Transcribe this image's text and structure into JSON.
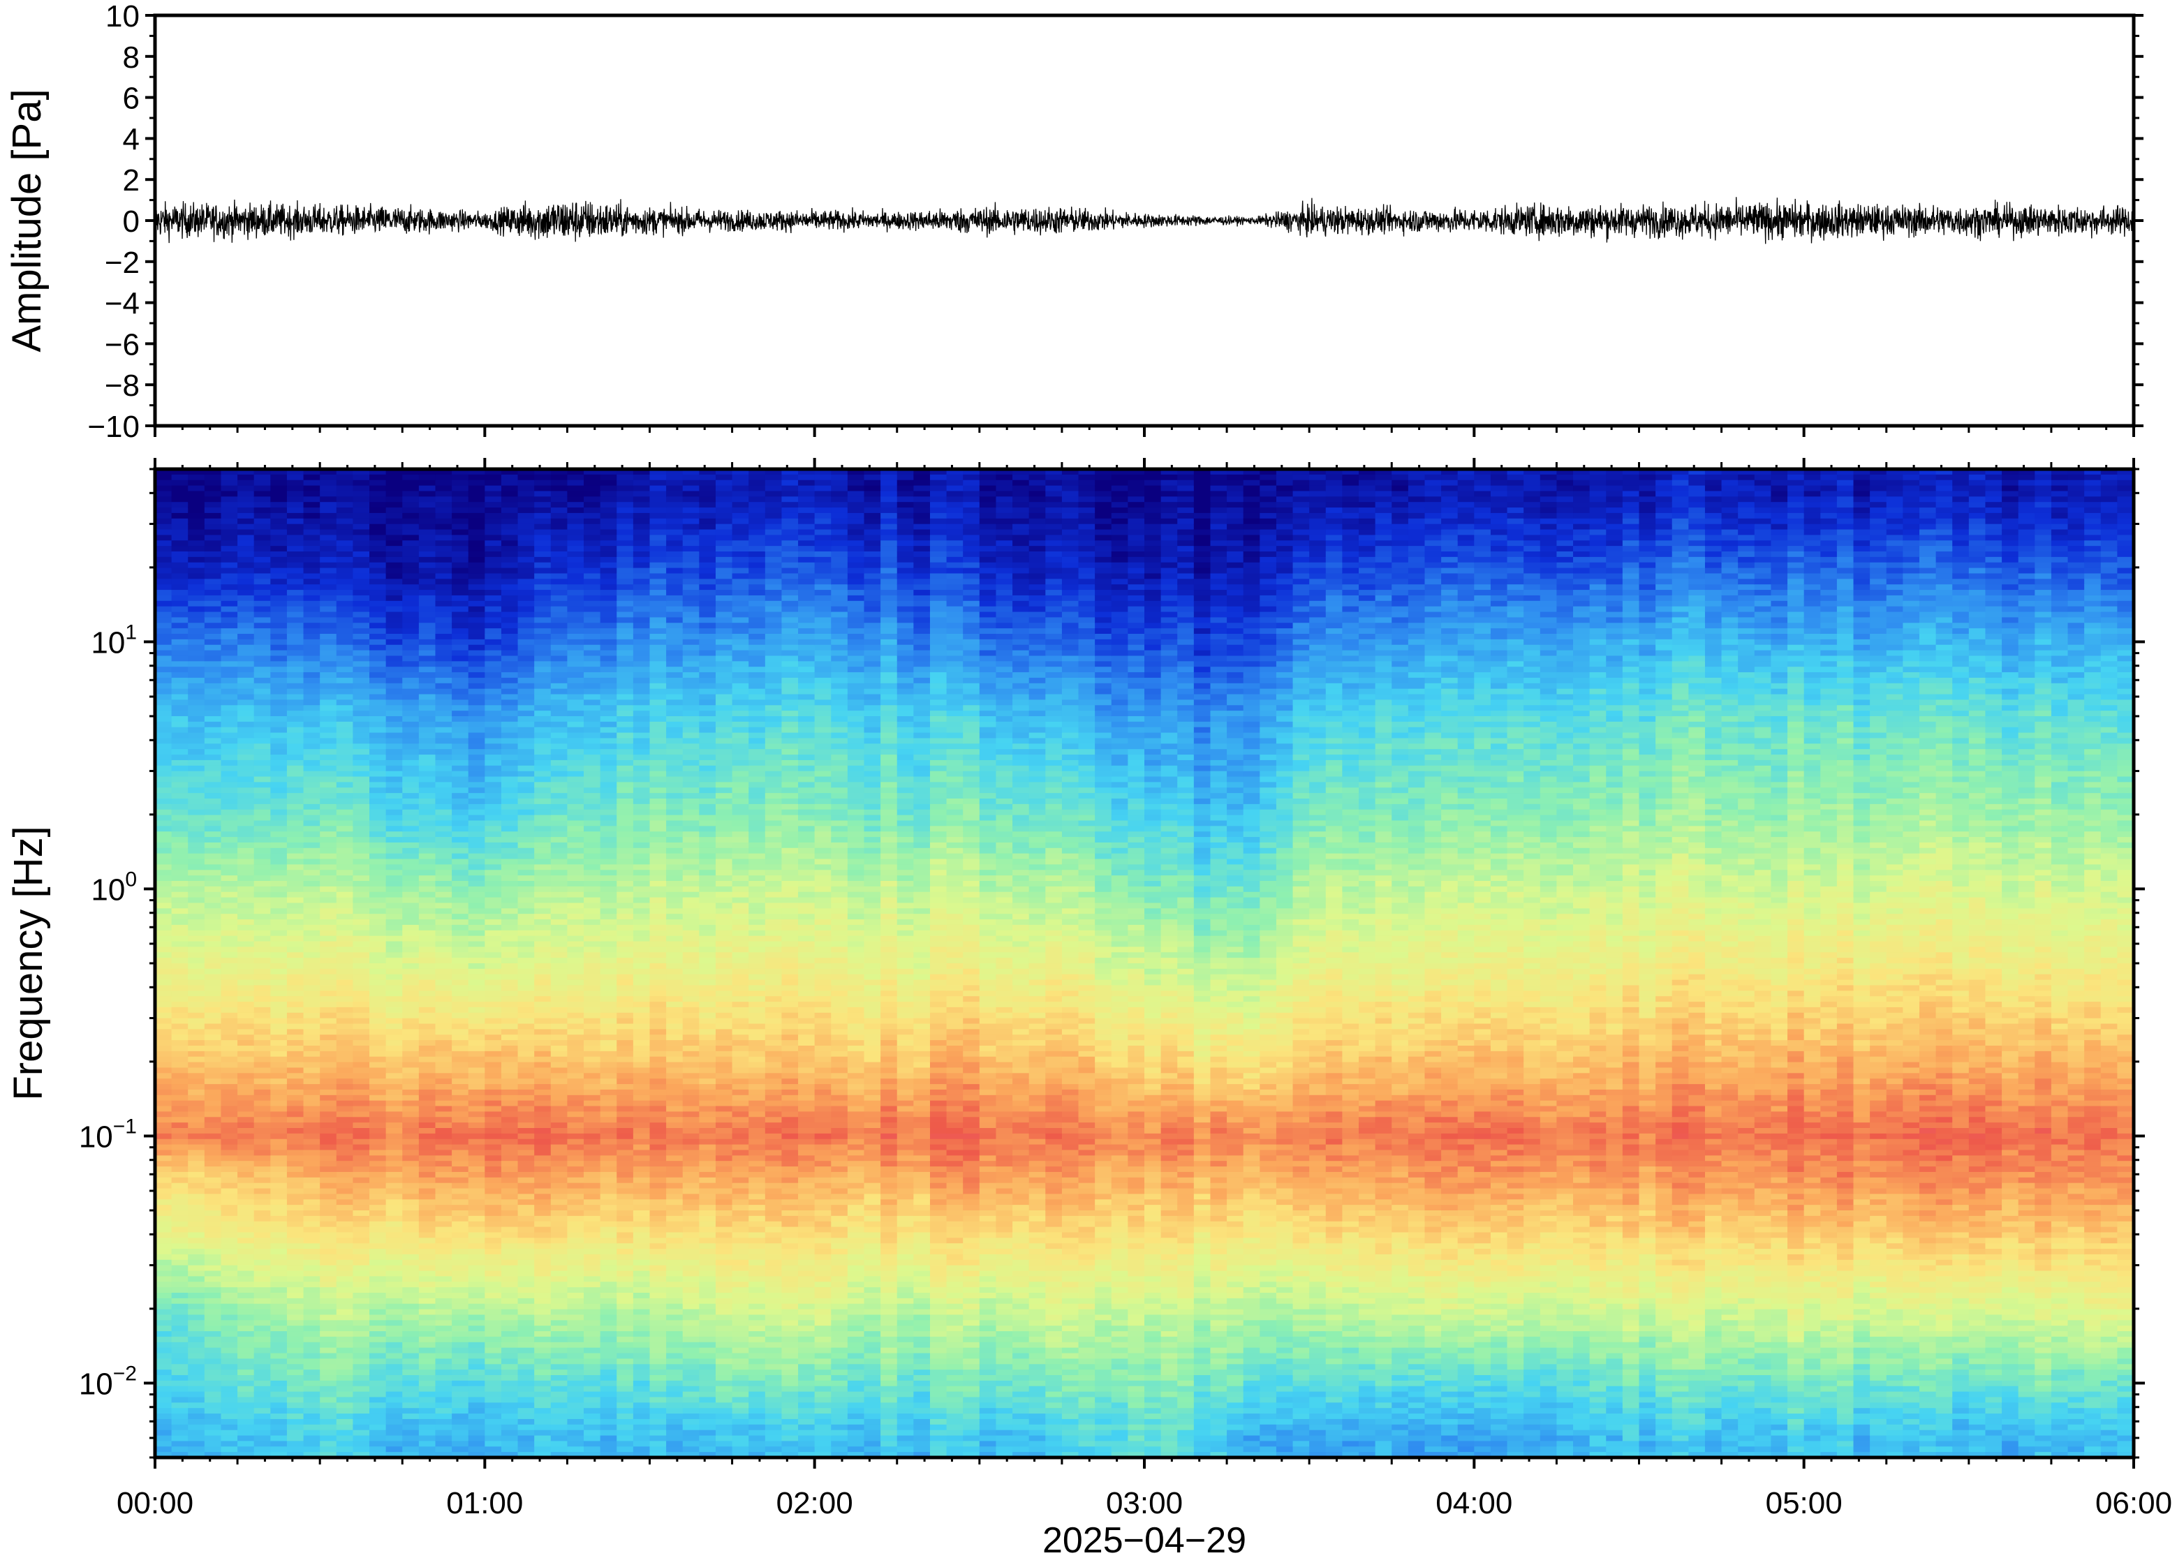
{
  "chart_data": [
    {
      "type": "line",
      "panel": "waveform",
      "ylabel": "Amplitude [Pa]",
      "ylim": [
        -10,
        10
      ],
      "yticks": [
        -10,
        -8,
        -6,
        -4,
        -2,
        0,
        2,
        4,
        6,
        8,
        10
      ],
      "ytick_labels": [
        "−10",
        "−8",
        "−6",
        "−4",
        "−2",
        "0",
        "2",
        "4",
        "6",
        "8",
        "10"
      ],
      "xlim": [
        "00:00",
        "06:00"
      ],
      "series": [
        {
          "color": "#000000",
          "x": [
            "00:00",
            "00:15",
            "00:30",
            "00:45",
            "01:00",
            "01:08",
            "01:15",
            "01:30",
            "01:45",
            "02:00",
            "02:15",
            "02:30",
            "02:45",
            "03:00",
            "03:10",
            "03:20",
            "03:30",
            "03:45",
            "04:00",
            "04:15",
            "04:30",
            "04:45",
            "05:00",
            "05:15",
            "05:30",
            "05:45",
            "06:00"
          ],
          "envelope": [
            1.0,
            1.0,
            0.9,
            0.8,
            0.5,
            1.1,
            1.3,
            0.8,
            0.6,
            0.6,
            0.5,
            0.8,
            0.8,
            0.4,
            0.3,
            0.2,
            0.9,
            0.7,
            0.7,
            1.0,
            0.9,
            1.0,
            1.1,
            0.9,
            0.9,
            0.9,
            0.8
          ],
          "peaks_max": [
            1.4,
            1.3,
            1.2,
            1.0,
            0.7,
            1.3,
            1.9,
            1.2,
            0.9,
            0.9,
            0.8,
            1.1,
            1.2,
            0.6,
            0.5,
            0.4,
            1.2,
            1.0,
            1.0,
            1.5,
            1.3,
            1.7,
            1.6,
            1.2,
            1.3,
            1.2,
            1.1
          ],
          "peaks_min": [
            -1.8,
            -1.3,
            -1.2,
            -1.1,
            -0.8,
            -1.9,
            -1.7,
            -1.3,
            -1.0,
            -1.0,
            -0.9,
            -1.3,
            -1.4,
            -0.7,
            -0.6,
            -0.5,
            -1.5,
            -1.1,
            -1.2,
            -1.9,
            -1.5,
            -1.9,
            -1.6,
            -1.5,
            -1.6,
            -1.5,
            -1.3
          ]
        }
      ]
    },
    {
      "type": "heatmap",
      "panel": "spectrogram",
      "ylabel": "Frequency [Hz]",
      "yscale": "log",
      "ylim": [
        0.005,
        50
      ],
      "yticks": [
        0.01,
        0.1,
        1,
        10
      ],
      "ytick_mantissa": "10",
      "ytick_exponents": [
        "−2",
        "−1",
        "0",
        "1"
      ],
      "x": [
        "00:00",
        "00:15",
        "00:30",
        "00:45",
        "01:00",
        "01:15",
        "01:30",
        "01:45",
        "02:00",
        "02:15",
        "02:30",
        "02:45",
        "03:00",
        "03:15",
        "03:30",
        "03:45",
        "04:00",
        "04:15",
        "04:30",
        "04:45",
        "05:00",
        "05:15",
        "05:30",
        "05:45",
        "06:00"
      ],
      "y": [
        0.006,
        0.01,
        0.02,
        0.04,
        0.07,
        0.1,
        0.2,
        0.5,
        1,
        2,
        5,
        10,
        20,
        40
      ],
      "z": [
        [
          0.3,
          0.35,
          0.4,
          0.6,
          0.7,
          0.85,
          0.75,
          0.6,
          0.52,
          0.4,
          0.32,
          0.22,
          0.1,
          0.02
        ],
        [
          0.3,
          0.38,
          0.45,
          0.62,
          0.72,
          0.83,
          0.72,
          0.58,
          0.5,
          0.38,
          0.3,
          0.2,
          0.08,
          0.02
        ],
        [
          0.33,
          0.4,
          0.5,
          0.65,
          0.76,
          0.84,
          0.72,
          0.58,
          0.5,
          0.4,
          0.3,
          0.18,
          0.08,
          0.02
        ],
        [
          0.3,
          0.38,
          0.5,
          0.66,
          0.78,
          0.85,
          0.73,
          0.58,
          0.48,
          0.36,
          0.28,
          0.16,
          0.06,
          0.02
        ],
        [
          0.28,
          0.36,
          0.5,
          0.68,
          0.8,
          0.86,
          0.74,
          0.55,
          0.45,
          0.32,
          0.24,
          0.12,
          0.05,
          0.02
        ],
        [
          0.32,
          0.4,
          0.52,
          0.68,
          0.8,
          0.87,
          0.74,
          0.6,
          0.52,
          0.42,
          0.32,
          0.22,
          0.12,
          0.04
        ],
        [
          0.3,
          0.38,
          0.5,
          0.66,
          0.78,
          0.85,
          0.74,
          0.6,
          0.52,
          0.43,
          0.34,
          0.24,
          0.14,
          0.06
        ],
        [
          0.3,
          0.42,
          0.55,
          0.68,
          0.78,
          0.84,
          0.72,
          0.6,
          0.52,
          0.43,
          0.34,
          0.24,
          0.14,
          0.06
        ],
        [
          0.3,
          0.4,
          0.55,
          0.66,
          0.76,
          0.84,
          0.72,
          0.6,
          0.52,
          0.43,
          0.35,
          0.26,
          0.15,
          0.06
        ],
        [
          0.32,
          0.4,
          0.52,
          0.66,
          0.77,
          0.85,
          0.73,
          0.6,
          0.52,
          0.42,
          0.34,
          0.24,
          0.14,
          0.06
        ],
        [
          0.3,
          0.4,
          0.52,
          0.68,
          0.8,
          0.86,
          0.75,
          0.6,
          0.52,
          0.42,
          0.32,
          0.2,
          0.1,
          0.04
        ],
        [
          0.32,
          0.42,
          0.55,
          0.68,
          0.79,
          0.85,
          0.74,
          0.6,
          0.5,
          0.4,
          0.3,
          0.18,
          0.08,
          0.04
        ],
        [
          0.4,
          0.45,
          0.55,
          0.68,
          0.78,
          0.84,
          0.7,
          0.55,
          0.45,
          0.35,
          0.26,
          0.16,
          0.07,
          0.02
        ],
        [
          0.3,
          0.4,
          0.5,
          0.65,
          0.76,
          0.82,
          0.65,
          0.48,
          0.38,
          0.28,
          0.22,
          0.12,
          0.05,
          0.02
        ],
        [
          0.28,
          0.38,
          0.52,
          0.68,
          0.79,
          0.85,
          0.73,
          0.6,
          0.52,
          0.43,
          0.34,
          0.24,
          0.14,
          0.06
        ],
        [
          0.28,
          0.38,
          0.55,
          0.7,
          0.8,
          0.86,
          0.74,
          0.6,
          0.53,
          0.44,
          0.36,
          0.26,
          0.15,
          0.06
        ],
        [
          0.25,
          0.35,
          0.55,
          0.7,
          0.81,
          0.86,
          0.74,
          0.6,
          0.53,
          0.44,
          0.36,
          0.26,
          0.16,
          0.07
        ],
        [
          0.3,
          0.38,
          0.55,
          0.7,
          0.8,
          0.86,
          0.74,
          0.62,
          0.55,
          0.46,
          0.38,
          0.28,
          0.16,
          0.07
        ],
        [
          0.32,
          0.4,
          0.55,
          0.7,
          0.8,
          0.85,
          0.75,
          0.62,
          0.55,
          0.47,
          0.38,
          0.28,
          0.17,
          0.07
        ],
        [
          0.3,
          0.4,
          0.55,
          0.7,
          0.8,
          0.86,
          0.76,
          0.63,
          0.55,
          0.47,
          0.4,
          0.3,
          0.18,
          0.08
        ],
        [
          0.32,
          0.42,
          0.57,
          0.72,
          0.82,
          0.87,
          0.76,
          0.63,
          0.55,
          0.47,
          0.39,
          0.28,
          0.17,
          0.07
        ],
        [
          0.3,
          0.4,
          0.55,
          0.7,
          0.8,
          0.86,
          0.75,
          0.63,
          0.55,
          0.47,
          0.38,
          0.28,
          0.17,
          0.07
        ],
        [
          0.28,
          0.38,
          0.55,
          0.72,
          0.82,
          0.87,
          0.76,
          0.63,
          0.56,
          0.47,
          0.39,
          0.28,
          0.17,
          0.07
        ],
        [
          0.3,
          0.42,
          0.57,
          0.72,
          0.82,
          0.87,
          0.76,
          0.63,
          0.55,
          0.47,
          0.38,
          0.28,
          0.17,
          0.07
        ],
        [
          0.3,
          0.4,
          0.6,
          0.72,
          0.82,
          0.86,
          0.75,
          0.62,
          0.55,
          0.46,
          0.38,
          0.28,
          0.16,
          0.07
        ]
      ],
      "colormap": [
        "#0a0080",
        "#0d2fd8",
        "#2f8cf0",
        "#46d3f2",
        "#8ff0b0",
        "#dcf88e",
        "#fbe47c",
        "#fba85c",
        "#ee5a4a",
        "#f05a7a"
      ]
    }
  ],
  "xaxis": {
    "tick_labels": [
      "00:00",
      "01:00",
      "02:00",
      "03:00",
      "04:00",
      "05:00",
      "06:00"
    ],
    "label": "2025−04−29"
  }
}
